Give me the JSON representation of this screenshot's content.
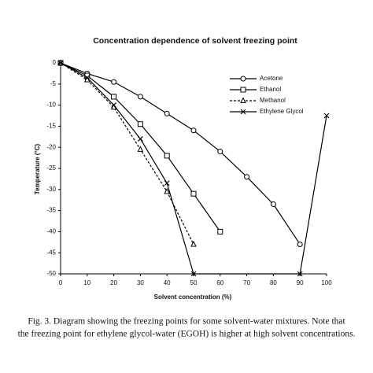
{
  "chart_data": {
    "type": "line",
    "title": "Concentration dependence of solvent freezing point",
    "xlabel": "Solvent concentration (%)",
    "ylabel": "Temperature (°C)",
    "xlim": [
      0,
      100
    ],
    "xticks": [
      0,
      10,
      20,
      30,
      40,
      50,
      60,
      70,
      80,
      90,
      100
    ],
    "ylim": [
      -50,
      0
    ],
    "yticks": [
      0,
      -5,
      -10,
      -15,
      -20,
      -25,
      -30,
      -35,
      -40,
      -45,
      -50
    ],
    "grid": false,
    "legend": "upper right",
    "series": [
      {
        "name": "Acetone",
        "color": "#000000",
        "marker": "circle",
        "line_style": "solid",
        "x": [
          0,
          10,
          20,
          30,
          40,
          50,
          60,
          70,
          80,
          90
        ],
        "values": [
          0,
          -2.5,
          -4.5,
          -8,
          -12,
          -16,
          -21,
          -27,
          -33.5,
          -43
        ]
      },
      {
        "name": "Ethanol",
        "color": "#000000",
        "marker": "square",
        "line_style": "solid",
        "x": [
          0,
          10,
          20,
          30,
          40,
          50,
          60
        ],
        "values": [
          0,
          -3,
          -8,
          -14.5,
          -22,
          -31,
          -40
        ]
      },
      {
        "name": "Methanol",
        "color": "#000000",
        "marker": "triangle",
        "line_style": "dashed",
        "x": [
          0,
          10,
          20,
          30,
          40,
          50
        ],
        "values": [
          0,
          -4,
          -10.5,
          -20.5,
          -30.5,
          -43
        ]
      },
      {
        "name": "Ethylene Glycol",
        "color": "#000000",
        "marker": "cross",
        "line_style": "solid",
        "x": [
          0,
          10,
          20,
          30,
          40,
          50,
          90,
          100
        ],
        "values": [
          0,
          -3.5,
          -10,
          -18,
          -28.5,
          -50,
          -50,
          -12.5
        ]
      }
    ]
  },
  "caption": [
    "Fig. 3. Diagram showing the freezing points for some solvent-water mixtures. Note that",
    "the freezing point for ethylene glycol-water (EGOH) is higher at high solvent concentrations."
  ]
}
